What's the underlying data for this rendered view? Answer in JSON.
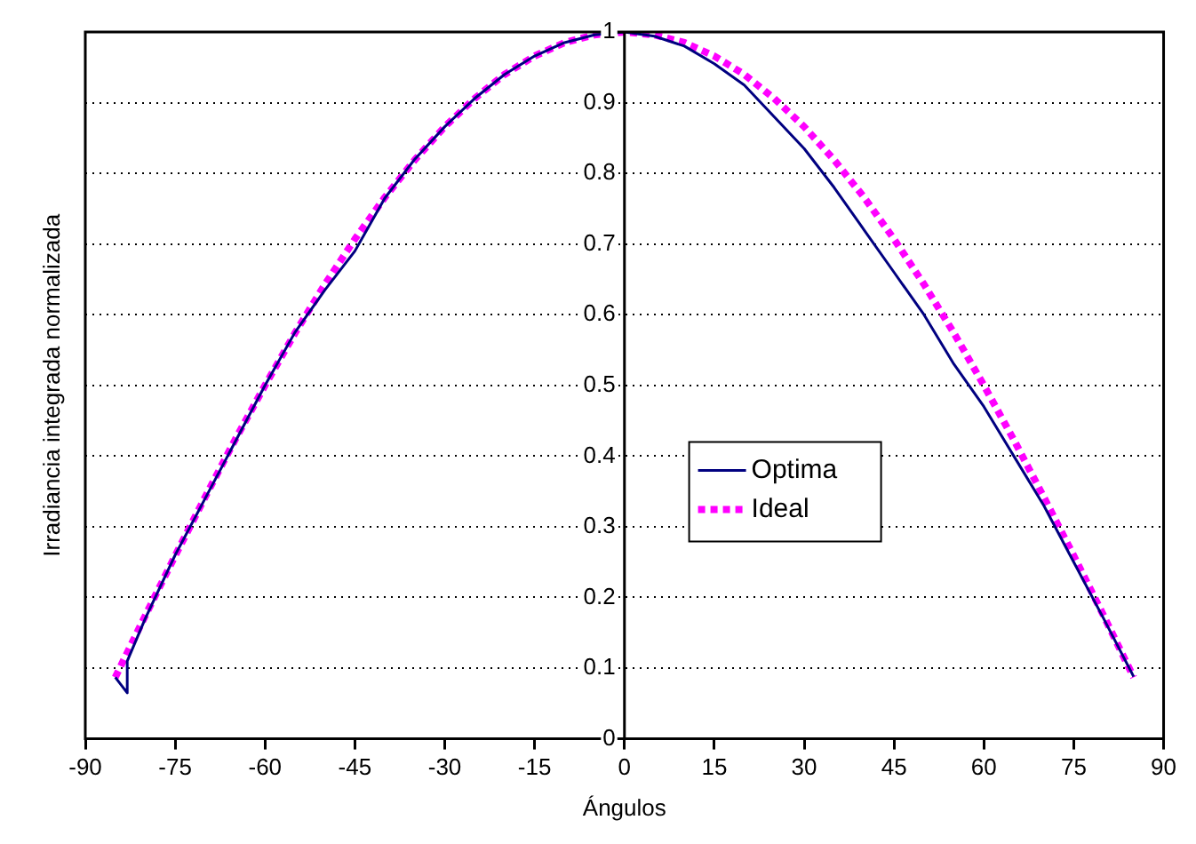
{
  "chart_data": {
    "type": "line",
    "xlabel": "Ángulos",
    "ylabel": "Irradiancia integrada normalizada",
    "xlim": [
      -90,
      90
    ],
    "xticks": [
      -90,
      -75,
      -60,
      -45,
      -30,
      -15,
      0,
      15,
      30,
      45,
      60,
      75,
      90
    ],
    "ylim": [
      0,
      1
    ],
    "yticks": [
      0,
      0.1,
      0.2,
      0.3,
      0.4,
      0.5,
      0.6,
      0.7,
      0.8,
      0.9,
      1
    ],
    "grid": "y",
    "legend": "right",
    "marker": "none",
    "series": [
      {
        "name": "Optima",
        "color": "#000080",
        "line_style": "solid",
        "x": [
          -85,
          -83,
          -83,
          -80,
          -75,
          -70,
          -65,
          -60,
          -55,
          -50,
          -45,
          -40,
          -35,
          -30,
          -25,
          -20,
          -15,
          -10,
          -5,
          0,
          5,
          10,
          15,
          20,
          25,
          30,
          35,
          40,
          45,
          50,
          55,
          60,
          65,
          70,
          75,
          80,
          85
        ],
        "values": [
          0.087,
          0.065,
          0.11,
          0.17,
          0.26,
          0.34,
          0.42,
          0.5,
          0.575,
          0.635,
          0.69,
          0.765,
          0.82,
          0.866,
          0.906,
          0.94,
          0.966,
          0.985,
          0.996,
          1,
          0.994,
          0.98,
          0.955,
          0.925,
          0.88,
          0.835,
          0.78,
          0.72,
          0.66,
          0.6,
          0.53,
          0.47,
          0.4,
          0.33,
          0.25,
          0.17,
          0.088
        ]
      },
      {
        "name": "Ideal",
        "color": "#ff00ff",
        "line_style": "dotted",
        "x": [
          -85,
          -80,
          -75,
          -70,
          -65,
          -60,
          -55,
          -50,
          -45,
          -40,
          -35,
          -30,
          -25,
          -20,
          -15,
          -10,
          -5,
          0,
          5,
          10,
          15,
          20,
          25,
          30,
          35,
          40,
          45,
          50,
          55,
          60,
          65,
          70,
          75,
          80,
          85
        ],
        "values": [
          0.087,
          0.174,
          0.259,
          0.342,
          0.423,
          0.5,
          0.574,
          0.643,
          0.707,
          0.766,
          0.819,
          0.866,
          0.906,
          0.94,
          0.966,
          0.985,
          0.996,
          1,
          0.996,
          0.985,
          0.966,
          0.94,
          0.906,
          0.866,
          0.819,
          0.766,
          0.707,
          0.643,
          0.574,
          0.5,
          0.423,
          0.342,
          0.259,
          0.174,
          0.087
        ]
      }
    ]
  }
}
